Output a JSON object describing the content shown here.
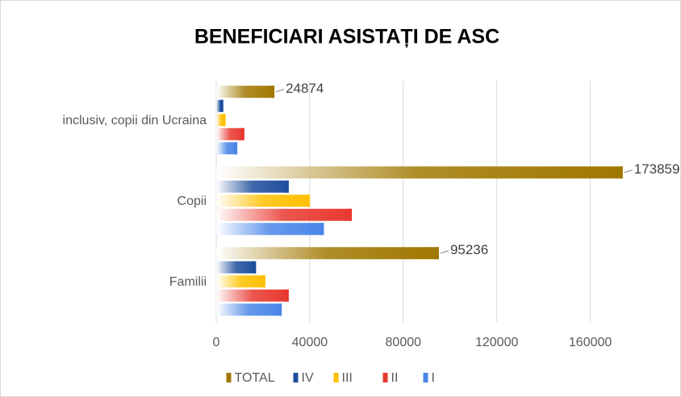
{
  "chart_data": {
    "type": "bar",
    "orientation": "horizontal",
    "title": "BENEFICIARI ASISTAȚI DE ASC",
    "categories": [
      "Familii",
      "Copii",
      "inclusiv, copii din Ucraina"
    ],
    "series": [
      {
        "name": "TOTAL",
        "color": "#a07800",
        "values": [
          95236,
          173859,
          24874
        ],
        "show_labels": true
      },
      {
        "name": "IV",
        "color": "#1f4e9c",
        "values": [
          17000,
          31000,
          3000
        ]
      },
      {
        "name": "III",
        "color": "#ffc000",
        "values": [
          21000,
          40000,
          4000
        ]
      },
      {
        "name": "II",
        "color": "#e8382f",
        "values": [
          31000,
          58000,
          12000
        ]
      },
      {
        "name": "I",
        "color": "#4a86e8",
        "values": [
          28000,
          46000,
          9000
        ]
      }
    ],
    "xlim": [
      0,
      195000
    ],
    "xticks": [
      0,
      40000,
      80000,
      120000,
      160000
    ],
    "grid": true,
    "legend": "bottom"
  }
}
